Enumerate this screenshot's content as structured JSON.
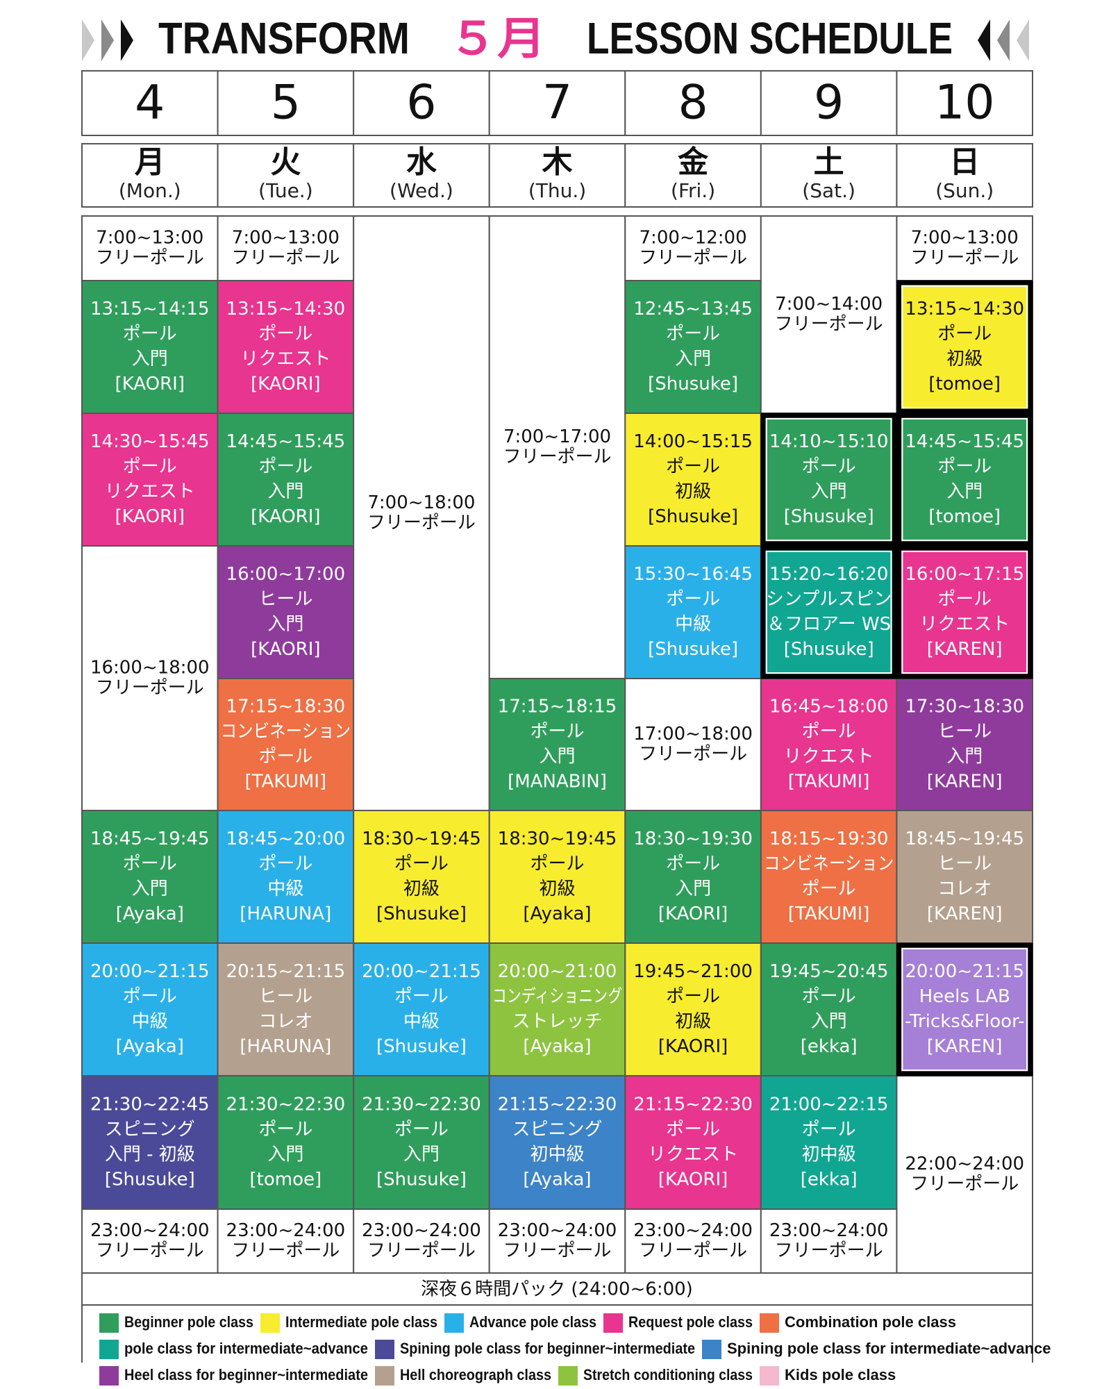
{
  "header": {
    "title_left": "TRANSFORM",
    "month": "５月",
    "title_right": "LESSON SCHEDULE"
  },
  "days": [
    {
      "date": "4",
      "weekday": "月",
      "weekday_en": "(Mon.)"
    },
    {
      "date": "5",
      "weekday": "火",
      "weekday_en": "(Tue.)"
    },
    {
      "date": "6",
      "weekday": "水",
      "weekday_en": "(Wed.)"
    },
    {
      "date": "7",
      "weekday": "木",
      "weekday_en": "(Thu.)"
    },
    {
      "date": "8",
      "weekday": "金",
      "weekday_en": "(Fri.)"
    },
    {
      "date": "9",
      "weekday": "土",
      "weekday_en": "(Sat.)"
    },
    {
      "date": "10",
      "weekday": "日",
      "weekday_en": "(Sun.)"
    }
  ],
  "columns": [
    {
      "blocks": [
        {
          "lines": [
            "7:00~13:00",
            "フリーポール"
          ],
          "color": "#ffffff"
        },
        {
          "lines": [
            "13:15~14:15",
            "ポール",
            "入門",
            "[KAORI]"
          ],
          "color": "#2f9e5c"
        },
        {
          "lines": [
            "14:30~15:45",
            "ポール",
            "リクエスト",
            "[KAORI]"
          ],
          "color": "#e8358f"
        },
        {
          "lines": [
            "16:00~18:00",
            "フリーポール"
          ],
          "color": "#ffffff"
        },
        {
          "lines": [
            "18:45~19:45",
            "ポール",
            "入門",
            "[Ayaka]"
          ],
          "color": "#2f9e5c"
        },
        {
          "lines": [
            "20:00~21:15",
            "ポール",
            "中級",
            "[Ayaka]"
          ],
          "color": "#2ab0e8"
        },
        {
          "lines": [
            "21:30~22:45",
            "スピニング",
            "入門 - 初級",
            "[Shusuke]"
          ],
          "color": "#4b4a99"
        },
        {
          "lines": [
            "23:00~24:00",
            "フリーポール"
          ],
          "color": "#ffffff"
        }
      ]
    },
    {
      "blocks": [
        {
          "lines": [
            "7:00~13:00",
            "フリーポール"
          ],
          "color": "#ffffff"
        },
        {
          "lines": [
            "13:15~14:30",
            "ポール",
            "リクエスト",
            "[KAORI]"
          ],
          "color": "#e8358f"
        },
        {
          "lines": [
            "14:45~15:45",
            "ポール",
            "入門",
            "[KAORI]"
          ],
          "color": "#2f9e5c"
        },
        {
          "lines": [
            "16:00~17:00",
            "ヒール",
            "入門",
            "[KAORI]"
          ],
          "color": "#8f3b9c"
        },
        {
          "lines": [
            "17:15~18:30",
            "コンビネーション",
            "ポール",
            "[TAKUMI]"
          ],
          "color": "#ee7044"
        },
        {
          "lines": [
            "18:45~20:00",
            "ポール",
            "中級",
            "[HARUNA]"
          ],
          "color": "#2ab0e8"
        },
        {
          "lines": [
            "20:15~21:15",
            "ヒール",
            "コレオ",
            "[HARUNA]"
          ],
          "color": "#b4a08e"
        },
        {
          "lines": [
            "21:30~22:30",
            "ポール",
            "入門",
            "[tomoe]"
          ],
          "color": "#2f9e5c"
        },
        {
          "lines": [
            "23:00~24:00",
            "フリーポール"
          ],
          "color": "#ffffff"
        }
      ]
    },
    {
      "blocks": [
        {
          "lines": [
            "7:00~18:00",
            "フリーポール"
          ],
          "color": "#ffffff"
        },
        {
          "lines": [
            "18:30~19:45",
            "ポール",
            "初級",
            "[Shusuke]"
          ],
          "color": "#f8ec2e"
        },
        {
          "lines": [
            "20:00~21:15",
            "ポール",
            "中級",
            "[Shusuke]"
          ],
          "color": "#2ab0e8"
        },
        {
          "lines": [
            "21:30~22:30",
            "ポール",
            "入門",
            "[Shusuke]"
          ],
          "color": "#2f9e5c"
        },
        {
          "lines": [
            "23:00~24:00",
            "フリーポール"
          ],
          "color": "#ffffff"
        }
      ]
    },
    {
      "blocks": [
        {
          "lines": [
            "7:00~17:00",
            "フリーポール"
          ],
          "color": "#ffffff"
        },
        {
          "lines": [
            "17:15~18:15",
            "ポール",
            "入門",
            "[MANABIN]"
          ],
          "color": "#2f9e5c"
        },
        {
          "lines": [
            "18:30~19:45",
            "ポール",
            "初級",
            "[Ayaka]"
          ],
          "color": "#f8ec2e"
        },
        {
          "lines": [
            "20:00~21:00",
            "コンディショニング",
            "ストレッチ",
            "[Ayaka]"
          ],
          "color": "#8dc33f"
        },
        {
          "lines": [
            "21:15~22:30",
            "スピニング",
            "初中級",
            "[Ayaka]"
          ],
          "color": "#3c83c8"
        },
        {
          "lines": [
            "23:00~24:00",
            "フリーポール"
          ],
          "color": "#ffffff"
        }
      ]
    },
    {
      "blocks": [
        {
          "lines": [
            "7:00~12:00",
            "フリーポール"
          ],
          "color": "#ffffff"
        },
        {
          "lines": [
            "12:45~13:45",
            "ポール",
            "入門",
            "[Shusuke]"
          ],
          "color": "#2f9e5c"
        },
        {
          "lines": [
            "14:00~15:15",
            "ポール",
            "初級",
            "[Shusuke]"
          ],
          "color": "#f8ec2e"
        },
        {
          "lines": [
            "15:30~16:45",
            "ポール",
            "中級",
            "[Shusuke]"
          ],
          "color": "#2ab0e8"
        },
        {
          "lines": [
            "17:00~18:00",
            "フリーポール"
          ],
          "color": "#ffffff"
        },
        {
          "lines": [
            "18:30~19:30",
            "ポール",
            "入門",
            "[KAORI]"
          ],
          "color": "#2f9e5c"
        },
        {
          "lines": [
            "19:45~21:00",
            "ポール",
            "初級",
            "[KAORI]"
          ],
          "color": "#f8ec2e"
        },
        {
          "lines": [
            "21:15~22:30",
            "ポール",
            "リクエスト",
            "[KAORI]"
          ],
          "color": "#e8358f"
        },
        {
          "lines": [
            "23:00~24:00",
            "フリーポール"
          ],
          "color": "#ffffff"
        }
      ]
    },
    {
      "blocks": [
        {
          "lines": [
            "7:00~14:00",
            "フリーポール"
          ],
          "color": "#ffffff"
        },
        {
          "lines": [
            "14:10~15:10",
            "ポール",
            "入門",
            "[Shusuke]"
          ],
          "color": "#2f9e5c"
        },
        {
          "lines": [
            "15:20~16:20",
            "シンプルスピン",
            "＆フロアー WS",
            "[Shusuke]"
          ],
          "color": "#10a692"
        },
        {
          "lines": [
            "16:45~18:00",
            "ポール",
            "リクエスト",
            "[TAKUMI]"
          ],
          "color": "#e8358f"
        },
        {
          "lines": [
            "18:15~19:30",
            "コンビネーション",
            "ポール",
            "[TAKUMI]"
          ],
          "color": "#ee7044"
        },
        {
          "lines": [
            "19:45~20:45",
            "ポール",
            "入門",
            "[ekka]"
          ],
          "color": "#2f9e5c"
        },
        {
          "lines": [
            "21:00~22:15",
            "ポール",
            "初中級",
            "[ekka]"
          ],
          "color": "#10a692"
        },
        {
          "lines": [
            "23:00~24:00",
            "フリーポール"
          ],
          "color": "#ffffff"
        }
      ]
    },
    {
      "blocks": [
        {
          "lines": [
            "7:00~13:00",
            "フリーポール"
          ],
          "color": "#ffffff"
        },
        {
          "lines": [
            "13:15~14:30",
            "ポール",
            "初級",
            "[tomoe]"
          ],
          "color": "#f8ec2e"
        },
        {
          "lines": [
            "14:45~15:45",
            "ポール",
            "入門",
            "[tomoe]"
          ],
          "color": "#2f9e5c"
        },
        {
          "lines": [
            "16:00~17:15",
            "ポール",
            "リクエスト",
            "[KAREN]"
          ],
          "color": "#e8358f"
        },
        {
          "lines": [
            "17:30~18:30",
            "ヒール",
            "入門",
            "[KAREN]"
          ],
          "color": "#8f3b9c"
        },
        {
          "lines": [
            "18:45~19:45",
            "ヒール",
            "コレオ",
            "[KAREN]"
          ],
          "color": "#b4a08e"
        },
        {
          "lines": [
            "20:00~21:15",
            "Heels LAB",
            "-Tricks&Floor-",
            "[KAREN]"
          ],
          "color": "#a67fd6"
        },
        {
          "lines": [
            "22:00~24:00",
            "フリーポール"
          ],
          "color": "#ffffff"
        }
      ]
    }
  ],
  "footer": "深夜６時間パック (24:00~6:00)",
  "legend": [
    {
      "label": "Beginner pole class",
      "color": "#2f9e5c"
    },
    {
      "label": "Intermediate pole class",
      "color": "#f8ec2e"
    },
    {
      "label": "Advance pole class",
      "color": "#2ab0e8"
    },
    {
      "label": "Request pole class",
      "color": "#e8358f"
    },
    {
      "label": "Combination pole class",
      "color": "#ee7044"
    },
    {
      "label": "pole class for intermediate~advance",
      "color": "#10a692"
    },
    {
      "label": "Spining pole class for beginner~intermediate",
      "color": "#4b4a99"
    },
    {
      "label": "Spining pole class for intermediate~advance",
      "color": "#3c83c8"
    },
    {
      "label": "Heel class for beginner~intermediate",
      "color": "#8f3b9c"
    },
    {
      "label": "Hell choreograph class",
      "color": "#b4a08e"
    },
    {
      "label": "Stretch conditioning class",
      "color": "#8dc33f"
    },
    {
      "label": "Kids pole class",
      "color": "#f5b8cf"
    }
  ]
}
